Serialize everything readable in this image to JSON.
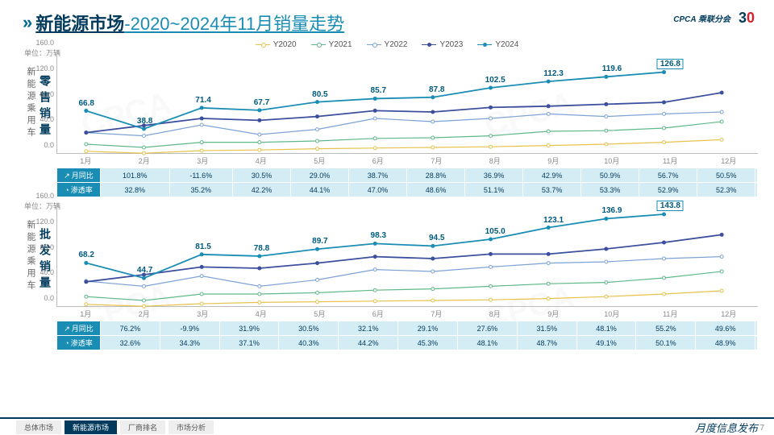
{
  "header": {
    "title_main": "新能源市场",
    "title_sub": "-2020~2024年11月销量走势"
  },
  "logos": {
    "cpca": "CPCA 乘联分会",
    "thirty": [
      "3",
      "0"
    ]
  },
  "legend": [
    "Y2020",
    "Y2021",
    "Y2022",
    "Y2023",
    "Y2024"
  ],
  "legend_colors": [
    "#e6c24d",
    "#5fb88a",
    "#7da2d6",
    "#3c4f9e",
    "#1a8db5"
  ],
  "legend_open": [
    true,
    true,
    true,
    false,
    false
  ],
  "months": [
    "1月",
    "2月",
    "3月",
    "4月",
    "5月",
    "6月",
    "7月",
    "8月",
    "9月",
    "10月",
    "11月",
    "12月"
  ],
  "unit_label": "单位：万辆",
  "side_label": "新能源乘用车",
  "chart1": {
    "subtitle": "零售销量",
    "ylim": [
      0,
      160
    ],
    "ytick_step": 40,
    "series": {
      "Y2020": [
        4,
        1,
        5,
        6,
        8,
        9,
        10,
        11,
        13,
        15,
        18,
        22
      ],
      "Y2021": [
        15,
        10,
        18,
        18,
        20,
        24,
        25,
        28,
        35,
        36,
        40,
        50
      ],
      "Y2022": [
        33,
        28,
        45,
        30,
        38,
        55,
        50,
        55,
        62,
        58,
        62,
        65
      ],
      "Y2023": [
        33,
        44,
        55,
        52,
        58,
        67,
        65,
        72,
        74,
        77,
        80,
        95
      ],
      "Y2024": [
        66.8,
        38.8,
        71.4,
        67.7,
        80.5,
        85.7,
        87.8,
        102.5,
        112.3,
        119.6,
        126.8
      ]
    },
    "labels2024": [
      66.8,
      38.8,
      71.4,
      67.7,
      80.5,
      85.7,
      87.8,
      102.5,
      112.3,
      119.6,
      126.8
    ],
    "box_last": true,
    "rows": [
      {
        "h": "月同比",
        "cells": [
          "101.8%",
          "-11.6%",
          "30.5%",
          "29.0%",
          "38.7%",
          "28.8%",
          "36.9%",
          "42.9%",
          "50.9%",
          "56.7%",
          "50.5%",
          ""
        ]
      },
      {
        "h": "渗透率",
        "cells": [
          "32.8%",
          "35.2%",
          "42.2%",
          "44.1%",
          "47.0%",
          "48.6%",
          "51.1%",
          "53.7%",
          "53.3%",
          "52.9%",
          "52.3%",
          ""
        ]
      }
    ],
    "row_icons": [
      "↗",
      "◔"
    ]
  },
  "chart2": {
    "subtitle": "批发销量",
    "ylim": [
      0,
      160
    ],
    "ytick_step": 40,
    "series": {
      "Y2020": [
        4,
        1,
        5,
        7,
        8,
        9,
        10,
        11,
        13,
        16,
        20,
        25
      ],
      "Y2021": [
        16,
        10,
        20,
        20,
        22,
        26,
        28,
        32,
        36,
        38,
        45,
        55
      ],
      "Y2022": [
        40,
        32,
        48,
        32,
        42,
        58,
        55,
        62,
        68,
        70,
        75,
        78
      ],
      "Y2023": [
        39,
        50,
        62,
        60,
        68,
        78,
        75,
        82,
        82,
        90,
        100,
        112
      ],
      "Y2024": [
        68.2,
        44.7,
        81.5,
        78.8,
        89.7,
        98.3,
        94.5,
        105.0,
        123.1,
        136.9,
        143.8
      ]
    },
    "labels2024": [
      68.2,
      44.7,
      81.5,
      78.8,
      89.7,
      98.3,
      94.5,
      105.0,
      123.1,
      136.9,
      143.8
    ],
    "box_last": true,
    "rows": [
      {
        "h": "月同比",
        "cells": [
          "76.2%",
          "-9.9%",
          "31.9%",
          "30.5%",
          "32.1%",
          "29.1%",
          "27.6%",
          "31.5%",
          "48.1%",
          "55.2%",
          "49.6%",
          ""
        ]
      },
      {
        "h": "渗透率",
        "cells": [
          "32.6%",
          "34.3%",
          "37.1%",
          "40.3%",
          "44.2%",
          "45.3%",
          "48.1%",
          "48.7%",
          "49.1%",
          "50.1%",
          "48.9%",
          ""
        ]
      }
    ],
    "row_icons": [
      "↗",
      "◔"
    ]
  },
  "footer": {
    "tabs": [
      "总体市场",
      "新能源市场",
      "厂商排名",
      "市场分析"
    ],
    "active": 1,
    "text": "月度信息发布",
    "page": "7"
  }
}
